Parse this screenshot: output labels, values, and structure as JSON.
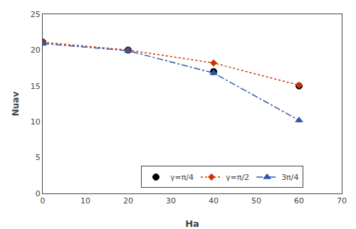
{
  "chart_data": {
    "type": "line",
    "x": [
      0,
      20,
      40,
      60
    ],
    "series": [
      {
        "name": "γ=π/4",
        "color": "#000000",
        "values": [
          21.1,
          20.0,
          17.0,
          15.0
        ],
        "type": "scatter",
        "marker": "circle",
        "line_style": "none"
      },
      {
        "name": "γ=π/2",
        "color": "#cc3300",
        "values": [
          21.1,
          20.0,
          18.2,
          15.1
        ],
        "type": "line",
        "marker": "diamond",
        "line_style": "dotted"
      },
      {
        "name": "3π/4",
        "color": "#3355aa",
        "values": [
          20.9,
          19.9,
          16.8,
          10.2
        ],
        "type": "line",
        "marker": "triangle-up",
        "line_style": "dashdot"
      }
    ],
    "xlabel": "Ha",
    "ylabel": "Nuav",
    "xlim": [
      0,
      70
    ],
    "ylim": [
      0,
      25
    ],
    "xticks": [
      0,
      10,
      20,
      30,
      40,
      50,
      60,
      70
    ],
    "yticks": [
      0,
      5,
      10,
      15,
      20,
      25
    ],
    "grid": false,
    "legend": "bottom"
  }
}
